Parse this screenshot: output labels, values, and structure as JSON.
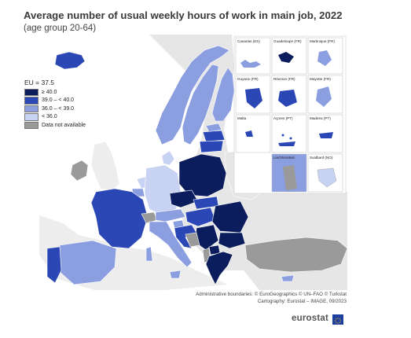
{
  "header": {
    "title": "Average number of usual weekly hours of work in main job, 2022",
    "subtitle": "(age group 20-64)"
  },
  "legend": {
    "title": "EU = 37.5",
    "items": [
      {
        "label": "≥ 40.0",
        "color": "#0b1d5c"
      },
      {
        "label": "39.0 – < 40.0",
        "color": "#2b47b5"
      },
      {
        "label": "36.0 – < 39.0",
        "color": "#8b9ee0"
      },
      {
        "label": "< 36.0",
        "color": "#c8d2f2"
      },
      {
        "label": "Data not available",
        "color": "#9a9a9a"
      }
    ]
  },
  "insets": [
    {
      "name": "Canarias (ES)"
    },
    {
      "name": "Guadeloupe (FR)"
    },
    {
      "name": "Martinique (FR)"
    },
    {
      "name": "Guyane (FR)"
    },
    {
      "name": "Réunion (FR)"
    },
    {
      "name": "Mayotte (FR)"
    },
    {
      "name": "Malta"
    },
    {
      "name": "Açores (PT)"
    },
    {
      "name": "Madeira (PT)"
    },
    {
      "name": "Liechtenstein"
    },
    {
      "name": "Svalbard (NO)"
    }
  ],
  "footer": {
    "credit_line1": "Administrative boundaries: © EuroGeographics © UN–FAO © Turkstat",
    "credit_line2": "Cartography: Eurostat – IMAGE, 09/2023",
    "brand": "eurostat"
  }
}
